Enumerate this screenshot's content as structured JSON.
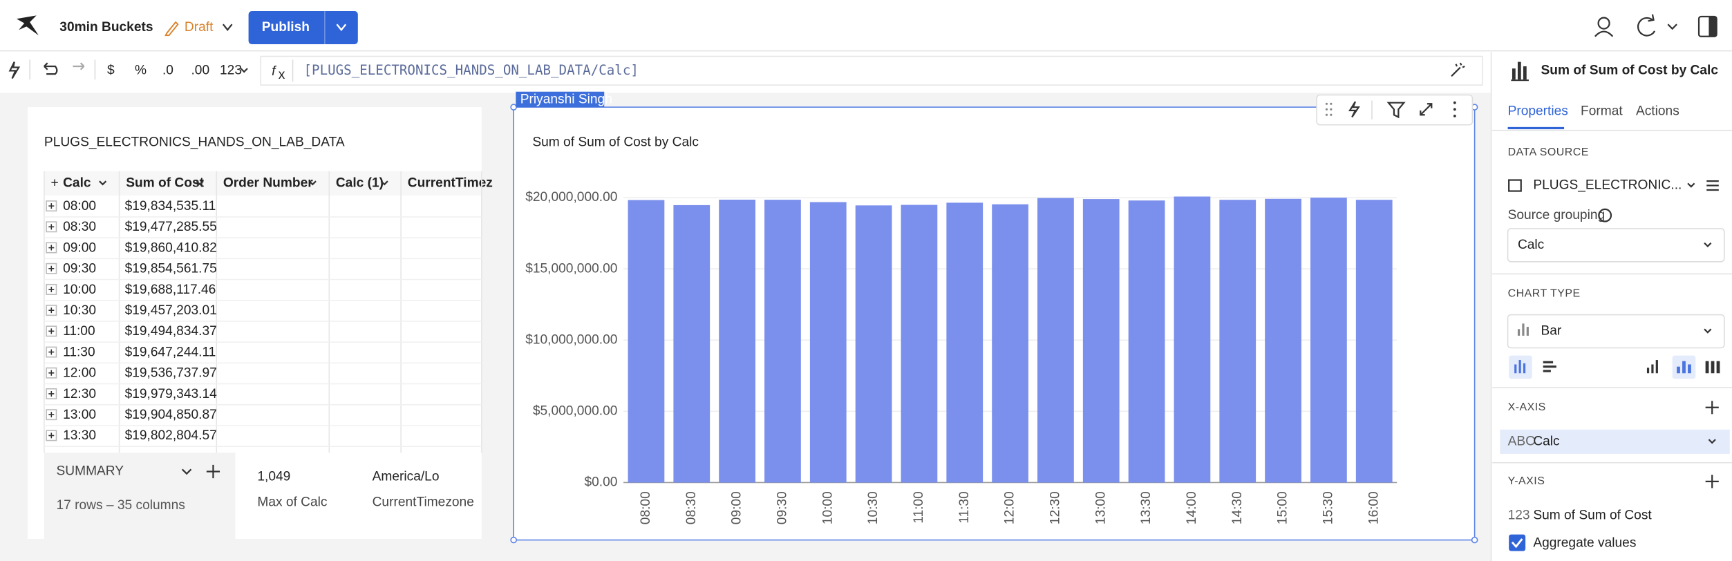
{
  "header": {
    "title": "30min Buckets",
    "status": "Draft",
    "publish": "Publish"
  },
  "toolbar": {
    "formats": [
      "$",
      "%",
      ".0",
      ".00",
      "123"
    ],
    "formula": "[PLUGS_ELECTRONICS_HANDS_ON_LAB_DATA/Calc]"
  },
  "table": {
    "title": "PLUGS_ELECTRONICS_HANDS_ON_LAB_DATA",
    "columns": [
      "Calc",
      "Sum of Cost",
      "Order Number",
      "Calc (1)",
      "CurrentTimez"
    ],
    "rows": [
      [
        "08:00",
        "$19,834,535.11"
      ],
      [
        "08:30",
        "$19,477,285.55"
      ],
      [
        "09:00",
        "$19,860,410.82"
      ],
      [
        "09:30",
        "$19,854,561.75"
      ],
      [
        "10:00",
        "$19,688,117.46"
      ],
      [
        "10:30",
        "$19,457,203.01"
      ],
      [
        "11:00",
        "$19,494,834.37"
      ],
      [
        "11:30",
        "$19,647,244.11"
      ],
      [
        "12:00",
        "$19,536,737.97"
      ],
      [
        "12:30",
        "$19,979,343.14"
      ],
      [
        "13:00",
        "$19,904,850.87"
      ],
      [
        "13:30",
        "$19,802,804.57"
      ]
    ],
    "summary": {
      "label": "SUMMARY",
      "count": "17 rows – 35 columns",
      "metrics": [
        {
          "value": "1,049",
          "label": "Max of Calc"
        },
        {
          "value": "America/Lo",
          "label": "CurrentTimezone"
        }
      ]
    }
  },
  "chart_owner": "Priyanshi Singh",
  "chart_data": {
    "type": "bar",
    "title": "Sum of Sum of Cost by Calc",
    "categories": [
      "08:00",
      "08:30",
      "09:00",
      "09:30",
      "10:00",
      "10:30",
      "11:00",
      "11:30",
      "12:00",
      "12:30",
      "13:00",
      "13:30",
      "14:00",
      "14:30",
      "15:00",
      "15:30",
      "16:00"
    ],
    "values": [
      19834535.11,
      19477285.55,
      19860410.82,
      19854561.75,
      19688117.46,
      19457203.01,
      19494834.37,
      19647244.11,
      19536737.97,
      19979343.14,
      19904850.87,
      19802804.57,
      20080000,
      19850000,
      19920000,
      20000000,
      19850000
    ],
    "color": "#7b8fec",
    "ylim": [
      0,
      20000000
    ],
    "yticks": [
      {
        "value": 0,
        "label": "$0.00"
      },
      {
        "value": 5000000,
        "label": "$5,000,000.00"
      },
      {
        "value": 10000000,
        "label": "$10,000,000.00"
      },
      {
        "value": 15000000,
        "label": "$15,000,000.00"
      },
      {
        "value": 20000000,
        "label": "$20,000,000.00"
      }
    ],
    "grid": true
  },
  "panel": {
    "title": "Sum of Sum of Cost by Calc",
    "tabs": [
      "Properties",
      "Format",
      "Actions"
    ],
    "data_source_label": "DATA SOURCE",
    "data_source": "PLUGS_ELECTRONIC...",
    "source_grouping_label": "Source grouping",
    "source_grouping": "Calc",
    "chart_type_label": "CHART TYPE",
    "chart_type": "Bar",
    "x_axis_label": "X-AXIS",
    "x_axis_field_type": "ABC",
    "x_axis_field": "Calc",
    "y_axis_label": "Y-AXIS",
    "y_axis_field_type": "123",
    "y_axis_field": "Sum of Sum of Cost",
    "aggregate": "Aggregate values"
  }
}
